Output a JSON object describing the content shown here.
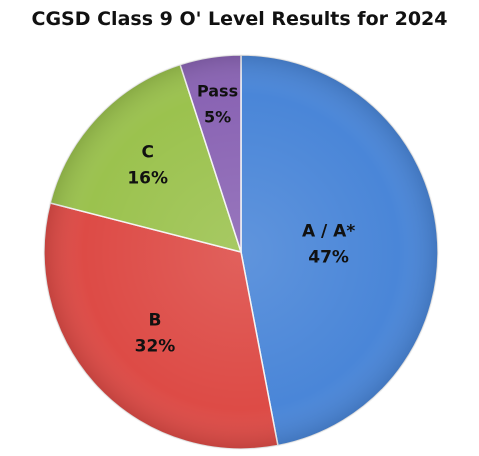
{
  "chart_data": {
    "type": "pie",
    "title": "CGSD Class 9 O' Level Results for 2024",
    "slices": [
      {
        "label": "A / A*",
        "value": 47,
        "display": "47%",
        "color": "#4a86d8"
      },
      {
        "label": "B",
        "value": 32,
        "display": "32%",
        "color": "#dd4b46"
      },
      {
        "label": "C",
        "value": 16,
        "display": "16%",
        "color": "#9bc24e"
      },
      {
        "label": "Pass",
        "value": 5,
        "display": "5%",
        "color": "#8a64b4"
      }
    ],
    "start": "12 o'clock",
    "direction": "clockwise",
    "legend": "none"
  }
}
